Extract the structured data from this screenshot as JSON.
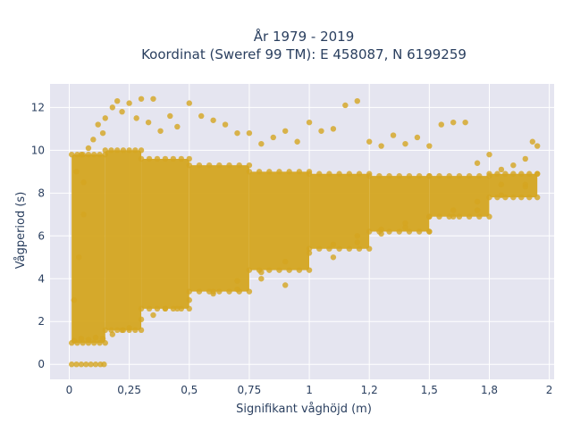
{
  "chart_data": {
    "type": "scatter",
    "title_lines": [
      "År 1979 - 2019",
      "Koordinat (Sweref 99 TM): E 458087, N 6199259"
    ],
    "xlabel": "Signifikant våghöjd (m)",
    "ylabel": "Vågperiod (s)",
    "xlim": [
      -0.08,
      2.02
    ],
    "ylim": [
      -0.7,
      13.1
    ],
    "x_ticks": [
      {
        "value": 0,
        "label": "0"
      },
      {
        "value": 0.25,
        "label": "0,25"
      },
      {
        "value": 0.5,
        "label": "0,5"
      },
      {
        "value": 0.75,
        "label": "0,75"
      },
      {
        "value": 1,
        "label": "1"
      },
      {
        "value": 1.25,
        "label": "1,2"
      },
      {
        "value": 1.5,
        "label": "1,5"
      },
      {
        "value": 1.75,
        "label": "1,8"
      },
      {
        "value": 2,
        "label": "2"
      }
    ],
    "y_ticks": [
      {
        "value": 0,
        "label": "0"
      },
      {
        "value": 2,
        "label": "2"
      },
      {
        "value": 4,
        "label": "4"
      },
      {
        "value": 6,
        "label": "6"
      },
      {
        "value": 8,
        "label": "8"
      },
      {
        "value": 10,
        "label": "10"
      },
      {
        "value": 12,
        "label": "12"
      }
    ],
    "grid": true,
    "marker_color": "#d4a520",
    "background_color": "#e5e5f0",
    "series": [
      {
        "points": [
          [
            0.01,
            0
          ],
          [
            0.03,
            0
          ],
          [
            0.05,
            0
          ],
          [
            0.07,
            0
          ],
          [
            0.09,
            0
          ],
          [
            0.11,
            0
          ],
          [
            0.13,
            0
          ],
          [
            0.145,
            0
          ],
          [
            0.02,
            1.1
          ],
          [
            0.05,
            1.2
          ],
          [
            0.08,
            1.15
          ],
          [
            0.11,
            1.25
          ],
          [
            0.14,
            1.2
          ],
          [
            0.18,
            1.4
          ],
          [
            0.22,
            1.6
          ],
          [
            0.3,
            2.1
          ],
          [
            0.4,
            2.6
          ],
          [
            0.5,
            3.0
          ],
          [
            0.6,
            3.4
          ],
          [
            0.7,
            3.9
          ],
          [
            0.8,
            4.3
          ],
          [
            0.9,
            4.8
          ],
          [
            1.0,
            5.2
          ],
          [
            1.1,
            5.6
          ],
          [
            1.2,
            6.0
          ],
          [
            1.3,
            6.3
          ],
          [
            1.4,
            6.6
          ],
          [
            1.5,
            6.9
          ],
          [
            1.6,
            7.2
          ],
          [
            1.7,
            7.6
          ],
          [
            1.8,
            7.9
          ],
          [
            1.9,
            8.3
          ],
          [
            0.02,
            3.0
          ],
          [
            0.04,
            5.0
          ],
          [
            0.06,
            7.0
          ],
          [
            0.03,
            9.0
          ],
          [
            0.05,
            9.8
          ],
          [
            0.06,
            8.5
          ],
          [
            0.08,
            10.1
          ],
          [
            0.1,
            10.5
          ],
          [
            0.12,
            11.2
          ],
          [
            0.14,
            10.8
          ],
          [
            0.15,
            11.5
          ],
          [
            0.18,
            12.0
          ],
          [
            0.2,
            12.3
          ],
          [
            0.22,
            11.8
          ],
          [
            0.25,
            12.2
          ],
          [
            0.28,
            11.5
          ],
          [
            0.3,
            12.4
          ],
          [
            0.33,
            11.3
          ],
          [
            0.35,
            12.4
          ],
          [
            0.38,
            10.9
          ],
          [
            0.42,
            11.6
          ],
          [
            0.45,
            11.1
          ],
          [
            0.5,
            12.2
          ],
          [
            0.55,
            11.6
          ],
          [
            0.6,
            11.4
          ],
          [
            0.65,
            11.2
          ],
          [
            0.7,
            10.8
          ],
          [
            0.75,
            10.8
          ],
          [
            0.8,
            10.3
          ],
          [
            0.85,
            10.6
          ],
          [
            0.9,
            10.9
          ],
          [
            0.95,
            10.4
          ],
          [
            1.0,
            11.3
          ],
          [
            1.05,
            10.9
          ],
          [
            1.1,
            11.0
          ],
          [
            1.15,
            12.1
          ],
          [
            1.2,
            12.3
          ],
          [
            1.25,
            10.4
          ],
          [
            1.3,
            10.2
          ],
          [
            1.35,
            10.7
          ],
          [
            1.4,
            10.3
          ],
          [
            1.45,
            10.6
          ],
          [
            1.5,
            10.2
          ],
          [
            1.55,
            11.2
          ],
          [
            1.6,
            11.3
          ],
          [
            1.65,
            11.3
          ],
          [
            1.7,
            9.4
          ],
          [
            1.75,
            9.8
          ],
          [
            1.8,
            9.1
          ],
          [
            1.85,
            9.3
          ],
          [
            1.9,
            9.6
          ],
          [
            1.93,
            10.4
          ],
          [
            1.95,
            10.2
          ],
          [
            1.1,
            5.0
          ],
          [
            1.2,
            5.7
          ],
          [
            1.3,
            6.1
          ],
          [
            1.4,
            6.4
          ],
          [
            1.5,
            6.2
          ],
          [
            1.6,
            6.9
          ],
          [
            1.7,
            7.2
          ],
          [
            1.8,
            8.4
          ],
          [
            1.9,
            8.4
          ],
          [
            1.95,
            8.9
          ],
          [
            0.9,
            3.7
          ],
          [
            0.8,
            4.0
          ],
          [
            0.7,
            3.5
          ],
          [
            0.6,
            3.3
          ],
          [
            0.45,
            2.6
          ],
          [
            0.35,
            2.3
          ],
          [
            0.25,
            1.7
          ]
        ],
        "dense_regions": [
          {
            "x_min": 0.01,
            "x_max": 0.15,
            "y_min": 1.0,
            "y_max": 9.8,
            "fill": 1.0
          },
          {
            "x_min": 0.15,
            "x_max": 0.3,
            "y_min": 1.6,
            "y_max": 10.0,
            "fill": 1.0
          },
          {
            "x_min": 0.3,
            "x_max": 0.5,
            "y_min": 2.6,
            "y_max": 9.6,
            "fill": 1.0
          },
          {
            "x_min": 0.5,
            "x_max": 0.75,
            "y_min": 3.4,
            "y_max": 9.3,
            "fill": 1.0
          },
          {
            "x_min": 0.75,
            "x_max": 1.0,
            "y_min": 4.4,
            "y_max": 9.0,
            "fill": 1.0
          },
          {
            "x_min": 1.0,
            "x_max": 1.25,
            "y_min": 5.4,
            "y_max": 8.9,
            "fill": 1.0
          },
          {
            "x_min": 1.25,
            "x_max": 1.5,
            "y_min": 6.2,
            "y_max": 8.8,
            "fill": 1.0
          },
          {
            "x_min": 1.5,
            "x_max": 1.75,
            "y_min": 6.9,
            "y_max": 8.8,
            "fill": 1.0
          },
          {
            "x_min": 1.75,
            "x_max": 1.95,
            "y_min": 7.8,
            "y_max": 8.9,
            "fill": 1.0
          }
        ]
      }
    ]
  }
}
